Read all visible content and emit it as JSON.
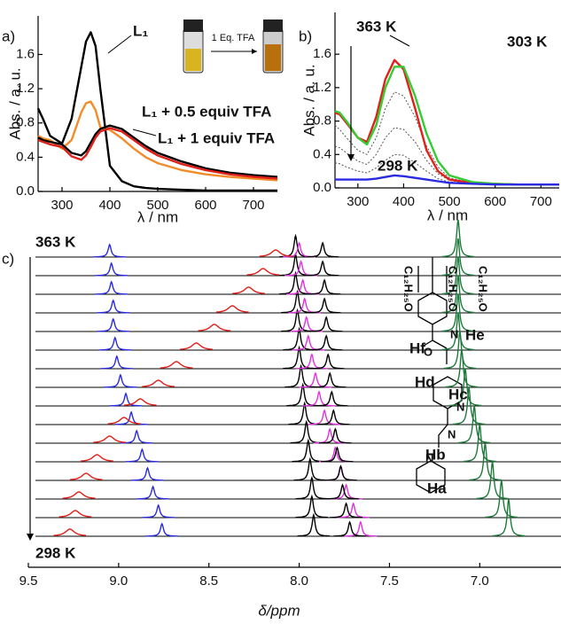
{
  "chart_data": [
    {
      "type": "line",
      "label": "a)",
      "ylabel": "Abs. / a. u.",
      "xlabel": "λ / nm",
      "inset_label": "1 Eq. TFA",
      "x": [
        250,
        260,
        275,
        300,
        320,
        340,
        350,
        360,
        370,
        380,
        400,
        425,
        450,
        475,
        500,
        550,
        600,
        650,
        700,
        750
      ],
      "xlim": [
        250,
        750
      ],
      "xticks": [
        300,
        400,
        500,
        600,
        700
      ],
      "ylim": [
        0,
        2.05
      ],
      "yticks": [
        {
          "value": 0,
          "label": "0.0"
        },
        0.4,
        0.8,
        1.2,
        1.6
      ],
      "series": [
        {
          "name": "L₁",
          "color": "#000000",
          "values": [
            0.97,
            0.85,
            0.65,
            0.56,
            0.85,
            1.45,
            1.75,
            1.86,
            1.7,
            1.2,
            0.3,
            0.12,
            0.06,
            0.04,
            0.03,
            0.02,
            0.01,
            0.01,
            0.01,
            0.01
          ]
        },
        {
          "name": "L₁ + 0.5 equiv TFA",
          "color": "#f28c28",
          "values": [
            0.65,
            0.62,
            0.6,
            0.5,
            0.6,
            0.92,
            1.03,
            1.05,
            0.95,
            0.75,
            0.72,
            0.62,
            0.5,
            0.4,
            0.33,
            0.25,
            0.2,
            0.17,
            0.15,
            0.13
          ]
        },
        {
          "color": "#000000",
          "values": [
            0.63,
            0.6,
            0.58,
            0.55,
            0.45,
            0.42,
            0.47,
            0.57,
            0.67,
            0.73,
            0.77,
            0.73,
            0.63,
            0.53,
            0.45,
            0.35,
            0.27,
            0.22,
            0.19,
            0.17
          ]
        },
        {
          "name": "L₁ + 1 equiv TFA",
          "color": "#e0201b",
          "values": [
            0.6,
            0.58,
            0.55,
            0.52,
            0.41,
            0.37,
            0.42,
            0.52,
            0.63,
            0.7,
            0.74,
            0.7,
            0.6,
            0.5,
            0.42,
            0.32,
            0.25,
            0.2,
            0.17,
            0.15
          ]
        }
      ]
    },
    {
      "type": "line",
      "label": "b)",
      "ylabel": "Abs. / a. u.",
      "xlabel": "λ / nm",
      "x": [
        250,
        260,
        275,
        300,
        320,
        340,
        360,
        380,
        400,
        425,
        450,
        475,
        500,
        550,
        600,
        650,
        700,
        740
      ],
      "xlim": [
        250,
        740
      ],
      "xticks": [
        300,
        400,
        500,
        600,
        700
      ],
      "ylim": [
        0,
        2.1
      ],
      "yticks": [
        {
          "value": 0,
          "label": "0.0"
        },
        0.4,
        0.8,
        1.2,
        1.6
      ],
      "series": [
        {
          "color": "#555555",
          "linestyle": "dotted",
          "values": [
            0.75,
            0.7,
            0.6,
            0.45,
            0.4,
            0.6,
            0.95,
            1.15,
            1.1,
            0.85,
            0.5,
            0.25,
            0.12,
            0.06,
            0.05,
            0.04,
            0.04,
            0.04
          ]
        },
        {
          "color": "#555555",
          "linestyle": "dotted",
          "values": [
            0.5,
            0.48,
            0.42,
            0.32,
            0.28,
            0.4,
            0.6,
            0.72,
            0.7,
            0.55,
            0.33,
            0.17,
            0.09,
            0.05,
            0.04,
            0.04,
            0.04,
            0.04
          ]
        },
        {
          "color": "#555555",
          "linestyle": "dotted",
          "values": [
            0.3,
            0.29,
            0.25,
            0.2,
            0.18,
            0.24,
            0.33,
            0.4,
            0.39,
            0.3,
            0.2,
            0.11,
            0.07,
            0.05,
            0.04,
            0.04,
            0.04,
            0.04
          ]
        },
        {
          "name": "363 K",
          "color": "#e0201b",
          "values": [
            0.9,
            0.88,
            0.78,
            0.6,
            0.55,
            0.85,
            1.3,
            1.53,
            1.42,
            0.95,
            0.45,
            0.2,
            0.1,
            0.06,
            0.05,
            0.04,
            0.04,
            0.04
          ]
        },
        {
          "name": "303 K",
          "color": "#33cc33",
          "values": [
            0.92,
            0.9,
            0.8,
            0.6,
            0.52,
            0.75,
            1.2,
            1.45,
            1.45,
            1.1,
            0.65,
            0.32,
            0.15,
            0.07,
            0.05,
            0.04,
            0.04,
            0.04
          ]
        },
        {
          "name": "298 K",
          "color": "#2a2ae0",
          "values": [
            0.1,
            0.1,
            0.1,
            0.1,
            0.1,
            0.11,
            0.13,
            0.15,
            0.14,
            0.12,
            0.1,
            0.08,
            0.06,
            0.05,
            0.04,
            0.04,
            0.04,
            0.04
          ]
        }
      ]
    },
    {
      "type": "nmr",
      "label": "c)",
      "xlabel": "δ/ppm",
      "xlim": [
        9.5,
        6.55
      ],
      "xticks": [
        9.5,
        {
          "value": 9,
          "label": "9.0"
        },
        8.5,
        {
          "value": 8,
          "label": "8.0"
        },
        7.5,
        {
          "value": 7,
          "label": "7.0"
        }
      ],
      "categories": [
        "363 K",
        null,
        null,
        null,
        null,
        null,
        null,
        null,
        null,
        null,
        null,
        null,
        null,
        null,
        null,
        "298 K"
      ],
      "series": [
        {
          "name": "Ha",
          "color": "#2a2ae0",
          "values": [
            9.05,
            9.04,
            9.04,
            9.03,
            9.03,
            9.02,
            9.01,
            8.99,
            8.96,
            8.93,
            8.9,
            8.87,
            8.84,
            8.81,
            8.78,
            8.76
          ]
        },
        {
          "name": "Hb",
          "color": "#000000",
          "values": [
            8.02,
            8.02,
            8.02,
            8.01,
            8.01,
            8.0,
            8.0,
            7.99,
            7.98,
            7.97,
            7.96,
            7.95,
            7.94,
            7.93,
            7.93,
            7.92
          ]
        },
        {
          "name": "Hc",
          "color": "#e033e0",
          "values": [
            8.0,
            7.99,
            7.98,
            7.97,
            7.96,
            7.95,
            7.93,
            7.91,
            7.89,
            7.86,
            7.83,
            7.8,
            7.77,
            7.74,
            7.7,
            7.66
          ]
        },
        {
          "name": "Hd",
          "color": "#000000",
          "values": [
            7.87,
            7.87,
            7.86,
            7.86,
            7.85,
            7.85,
            7.84,
            7.83,
            7.82,
            7.81,
            7.8,
            7.79,
            7.77,
            7.76,
            7.74,
            7.72
          ]
        },
        {
          "name": "He",
          "color": "#e0201b",
          "values": [
            8.13,
            8.2,
            8.28,
            8.37,
            8.47,
            8.57,
            8.68,
            8.78,
            8.88,
            8.97,
            9.05,
            9.12,
            9.18,
            9.22,
            9.24,
            9.27
          ]
        },
        {
          "name": "Hf",
          "color": "#1e7a3a",
          "values": [
            7.12,
            7.12,
            7.12,
            7.12,
            7.12,
            7.12,
            7.11,
            7.1,
            7.08,
            7.06,
            7.03,
            7.0,
            6.97,
            6.93,
            6.88,
            6.84
          ]
        }
      ],
      "structure_labels": [
        "C₁₂H₂₅O",
        "C₁₂H₂₅O",
        "C₁₂H₂₅O"
      ],
      "structure_atoms": [
        "O",
        "N",
        "N",
        "N",
        "N"
      ]
    }
  ]
}
